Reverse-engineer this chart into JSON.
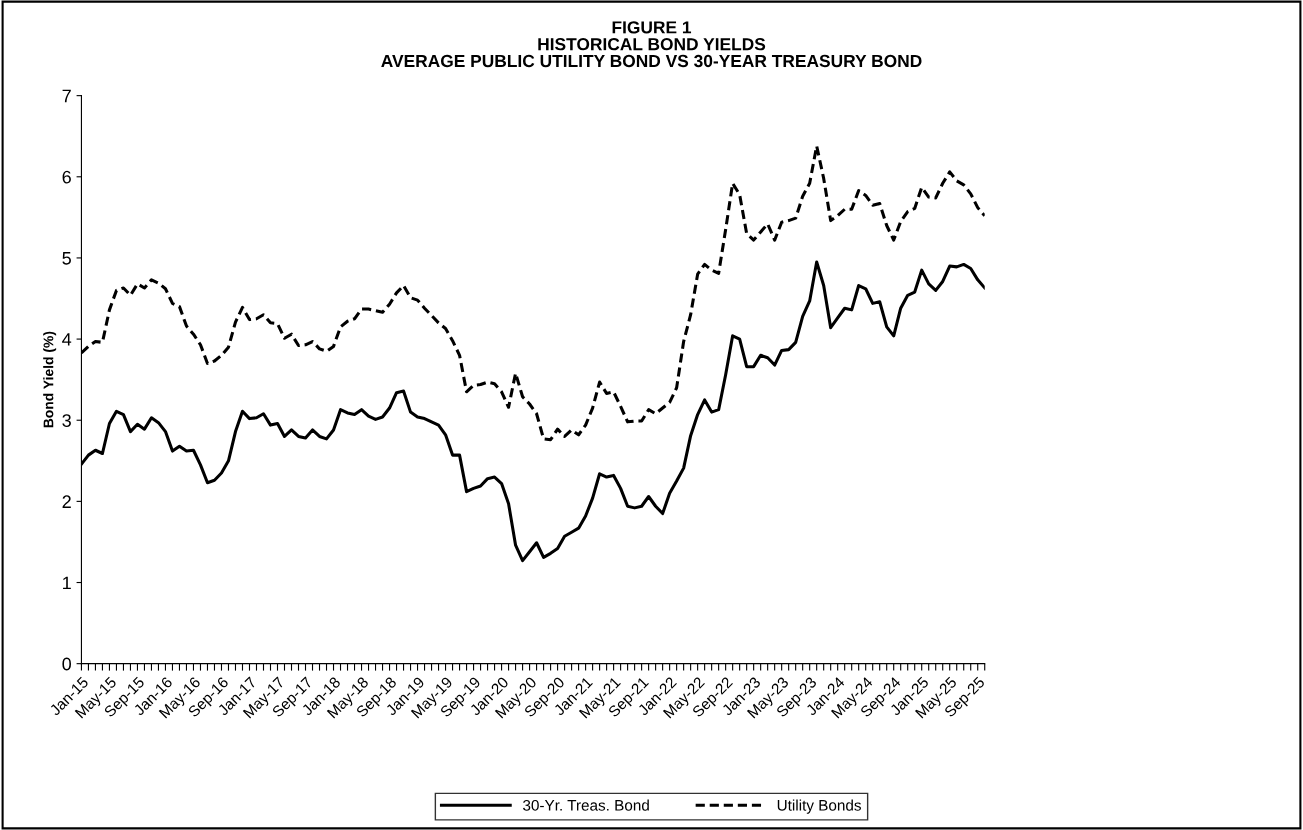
{
  "chart_data": {
    "type": "line",
    "title": "FIGURE 1\nHISTORICAL BOND YIELDS\nAVERAGE PUBLIC UTILITY BOND VS 30-YEAR TREASURY BOND",
    "ylabel": "Bond Yield (%)",
    "categories": [
      "Jan-15",
      null,
      null,
      null,
      "May-15",
      null,
      null,
      null,
      "Sep-15",
      null,
      null,
      null,
      "Jan-16",
      null,
      null,
      null,
      "May-16",
      null,
      null,
      null,
      "Sep-16",
      null,
      null,
      null,
      "Jan-17",
      null,
      null,
      null,
      "May-17",
      null,
      null,
      null,
      "Sep-17",
      null,
      null,
      null,
      "Jan-18",
      null,
      null,
      null,
      "May-18",
      null,
      null,
      null,
      "Sep-18",
      null,
      null,
      null,
      "Jan-19",
      null,
      null,
      null,
      "May-19",
      null,
      null,
      null,
      "Sep-19",
      null,
      null,
      null,
      "Jan-20",
      null,
      null,
      null,
      "May-20",
      null,
      null,
      null,
      "Sep-20",
      null,
      null,
      null,
      "Jan-21",
      null,
      null,
      null,
      "May-21",
      null,
      null,
      null,
      "Sep-21",
      null,
      null,
      null,
      "Jan-22",
      null,
      null,
      null,
      "May-22",
      null,
      null,
      null,
      "Sep-22",
      null,
      null,
      null,
      "Jan-23",
      null,
      null,
      null,
      "May-23",
      null,
      null,
      null,
      "Sep-23",
      null,
      null,
      null,
      "Jan-24",
      null,
      null,
      null,
      "May-24",
      null,
      null,
      null,
      "Sep-24",
      null,
      null,
      null,
      "Jan-25",
      null,
      null,
      null,
      "May-25",
      null,
      null,
      null,
      "Sep-25",
      null
    ],
    "series": [
      {
        "name": "30-Yr. Treas. Bond",
        "color": "#000000",
        "line_style": "solid",
        "values": [
          2.46,
          2.57,
          2.63,
          2.59,
          2.96,
          3.11,
          3.07,
          2.86,
          2.95,
          2.89,
          3.03,
          2.97,
          2.86,
          2.62,
          2.68,
          2.62,
          2.63,
          2.45,
          2.23,
          2.26,
          2.35,
          2.5,
          2.86,
          3.11,
          3.02,
          3.03,
          3.08,
          2.94,
          2.96,
          2.8,
          2.88,
          2.8,
          2.78,
          2.88,
          2.8,
          2.77,
          2.88,
          3.13,
          3.09,
          3.07,
          3.13,
          3.05,
          3.01,
          3.04,
          3.15,
          3.34,
          3.36,
          3.1,
          3.04,
          3.02,
          2.98,
          2.94,
          2.82,
          2.57,
          2.57,
          2.12,
          2.16,
          2.19,
          2.28,
          2.3,
          2.22,
          1.97,
          1.46,
          1.27,
          1.38,
          1.49,
          1.31,
          1.36,
          1.42,
          1.57,
          1.62,
          1.67,
          1.82,
          2.04,
          2.34,
          2.3,
          2.32,
          2.16,
          1.94,
          1.92,
          1.94,
          2.06,
          1.94,
          1.85,
          2.1,
          2.25,
          2.41,
          2.81,
          3.07,
          3.25,
          3.1,
          3.13,
          3.56,
          4.04,
          4.0,
          3.66,
          3.66,
          3.8,
          3.77,
          3.68,
          3.86,
          3.87,
          3.96,
          4.28,
          4.47,
          4.95,
          4.66,
          4.14,
          4.26,
          4.38,
          4.36,
          4.66,
          4.62,
          4.44,
          4.46,
          4.15,
          4.04,
          4.38,
          4.54,
          4.58,
          4.85,
          4.68,
          4.6,
          4.71,
          4.9,
          4.89,
          4.92,
          4.87,
          4.73,
          4.63
        ]
      },
      {
        "name": "Utility Bonds",
        "color": "#000000",
        "line_style": "dashed",
        "values": [
          3.83,
          3.91,
          3.97,
          3.96,
          4.36,
          4.6,
          4.63,
          4.54,
          4.68,
          4.63,
          4.73,
          4.69,
          4.62,
          4.44,
          4.4,
          4.16,
          4.06,
          3.93,
          3.7,
          3.73,
          3.8,
          3.9,
          4.21,
          4.39,
          4.24,
          4.25,
          4.3,
          4.2,
          4.19,
          4.01,
          4.06,
          3.92,
          3.93,
          3.97,
          3.88,
          3.85,
          3.91,
          4.15,
          4.22,
          4.25,
          4.37,
          4.37,
          4.35,
          4.33,
          4.43,
          4.57,
          4.66,
          4.51,
          4.48,
          4.38,
          4.29,
          4.2,
          4.13,
          3.98,
          3.8,
          3.35,
          3.43,
          3.44,
          3.47,
          3.45,
          3.35,
          3.16,
          3.58,
          3.29,
          3.2,
          3.08,
          2.77,
          2.76,
          2.89,
          2.8,
          2.88,
          2.82,
          2.94,
          3.15,
          3.47,
          3.33,
          3.35,
          3.17,
          2.98,
          2.99,
          2.99,
          3.13,
          3.08,
          3.15,
          3.22,
          3.4,
          3.97,
          4.3,
          4.8,
          4.92,
          4.85,
          4.81,
          5.35,
          5.92,
          5.78,
          5.3,
          5.22,
          5.32,
          5.42,
          5.22,
          5.44,
          5.46,
          5.49,
          5.76,
          5.92,
          6.38,
          5.98,
          5.46,
          5.52,
          5.6,
          5.6,
          5.83,
          5.77,
          5.65,
          5.67,
          5.4,
          5.22,
          5.45,
          5.57,
          5.61,
          5.87,
          5.75,
          5.74,
          5.92,
          6.06,
          5.95,
          5.9,
          5.79,
          5.62,
          5.52
        ]
      }
    ],
    "ylim": [
      0,
      7
    ],
    "yticks": [
      0,
      1,
      2,
      3,
      4,
      5,
      6,
      7
    ],
    "grid": false,
    "legend": "bottom",
    "marker": "none"
  }
}
